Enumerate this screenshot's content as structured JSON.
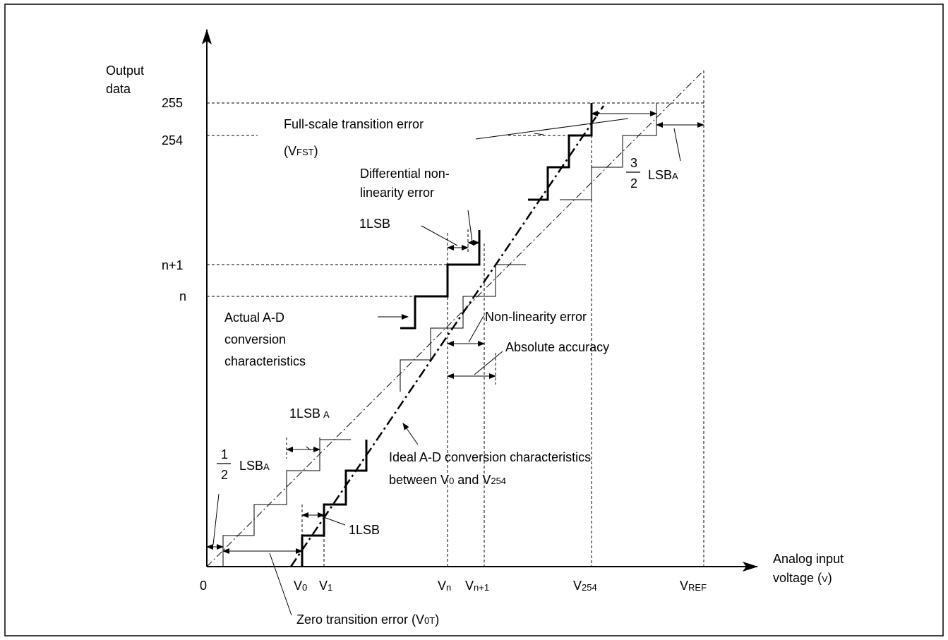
{
  "diagram": {
    "y_axis": {
      "title_line1": "Output",
      "title_line2": "data"
    },
    "x_axis": {
      "title_line1": "Analog input",
      "title_line2_main": "voltage (",
      "title_line2_unit": "V",
      "title_line2_end": ")"
    },
    "y_ticks": {
      "t255": "255",
      "t254": "254",
      "tn1": "n+1",
      "tn": "n"
    },
    "x_ticks": {
      "zero": "0",
      "v0_main": "V",
      "v0_sub": "0",
      "v1_main": "V",
      "v1_sub": "1",
      "vn_main": "V",
      "vn_sub": "n",
      "vn1_main": "V",
      "vn1_sub": "n+1",
      "v254_main": "V",
      "v254_sub": "254",
      "vref_main": "V",
      "vref_sub": "REF"
    },
    "labels": {
      "full_scale_line1": "Full-scale transition error",
      "full_scale_line2_open": "(V",
      "full_scale_line2_sub": "FST",
      "full_scale_line2_close": ")",
      "diff_line1": "Differential non-",
      "diff_line2": "linearity error",
      "one_lsb_top": "1LSB",
      "actual_line1": "Actual A-D",
      "actual_line2": "conversion",
      "actual_line3": "characteristics",
      "nonlinearity": "Non-linearity error",
      "absolute": "Absolute accuracy",
      "one_lsb_a_main": "1LSB",
      "one_lsb_a_sub": "A",
      "half_num": "1",
      "half_den": "2",
      "half_lsb_main": "LSB",
      "half_lsb_sub": "A",
      "three_half_num": "3",
      "three_half_den": "2",
      "three_half_lsb_main": "LSB",
      "three_half_lsb_sub": "A",
      "ideal_line1": "Ideal A-D conversion characteristics",
      "ideal_line2_a": "between V",
      "ideal_line2_sub0": "0",
      "ideal_line2_b": " and V",
      "ideal_line2_sub254": "254",
      "one_lsb_bottom": "1LSB",
      "zero_trans_main": "Zero transition error (V",
      "zero_trans_sub": "0T",
      "zero_trans_close": ")"
    }
  }
}
